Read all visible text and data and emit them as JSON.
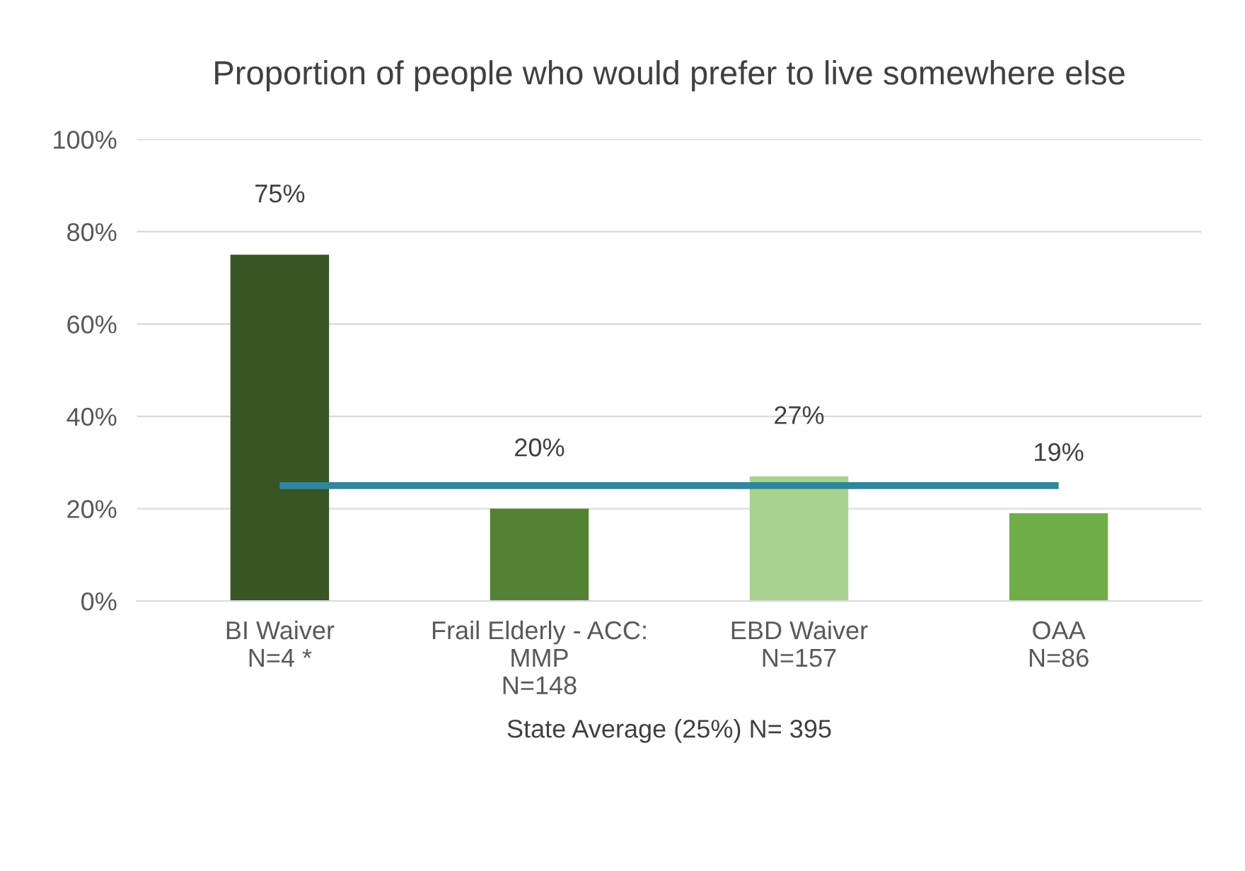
{
  "chart_data": {
    "type": "bar",
    "title": "Proportion of people who would prefer to live somewhere else",
    "xlabel": "State Average (25%) N= 395",
    "categories": [
      "BI Waiver\nN=4 *",
      "Frail Elderly - ACC:\nMMP\nN=148",
      "EBD Waiver\nN=157",
      "OAA\nN=86"
    ],
    "series": [
      {
        "values": [
          75,
          20,
          27,
          19
        ],
        "colors": [
          "#375623",
          "#548235",
          "#a9d18e",
          "#70ad47"
        ],
        "value_labels": [
          "75%",
          "20%",
          "27%",
          "19%"
        ]
      },
      {
        "type": "line",
        "color": "#31869b",
        "values": [
          25,
          25,
          25,
          25
        ]
      }
    ],
    "ylim": [
      0,
      100
    ],
    "yticks": [
      {
        "value": 0,
        "label": "0%"
      },
      {
        "value": 20,
        "label": "20%"
      },
      {
        "value": 40,
        "label": "40%"
      },
      {
        "value": 60,
        "label": "60%"
      },
      {
        "value": 80,
        "label": "80%"
      },
      {
        "value": 100,
        "label": "100%"
      }
    ],
    "grid": "y",
    "legend": false
  }
}
